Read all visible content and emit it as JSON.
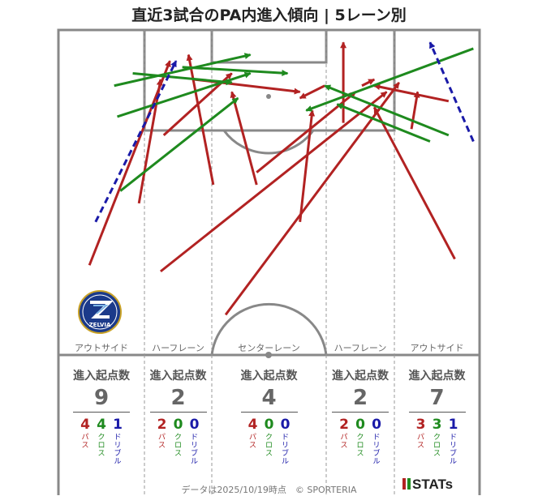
{
  "title": "直近3試合のPA内進入傾向 | 5レーン別",
  "footer": "データは2025/10/19時点　© SPORTERIA",
  "stats_logo": "STATs",
  "club_logo": {
    "text": "ZELVIA",
    "color": "#1b3a8a"
  },
  "stat_heading": "進入起点数",
  "types": {
    "pass": "パス",
    "cross": "クロス",
    "dribble": "ドリブル"
  },
  "colors": {
    "pass": "#b22222",
    "cross": "#1e8a1e",
    "dribble": "#1a1aa8"
  },
  "lanes": [
    {
      "name": "アウトサイド",
      "total": "9",
      "pass": "4",
      "cross": "4",
      "dribble": "1"
    },
    {
      "name": "ハーフレーン",
      "total": "2",
      "pass": "2",
      "cross": "0",
      "dribble": "0"
    },
    {
      "name": "センターレーン",
      "total": "4",
      "pass": "4",
      "cross": "0",
      "dribble": "0"
    },
    {
      "name": "ハーフレーン",
      "total": "2",
      "pass": "2",
      "cross": "0",
      "dribble": "0"
    },
    {
      "name": "アウトサイド",
      "total": "7",
      "pass": "3",
      "cross": "3",
      "dribble": "1"
    }
  ],
  "chart_data": {
    "type": "scatter",
    "title": "直近3試合のPA内進入傾向 | 5レーン別",
    "description_units": "pitch coordinates in metres: x = across pitch (0 left touchline – 68 right touchline), y = distance from goal line (0 – 52.5 half-way line)",
    "xlim": [
      0,
      68
    ],
    "ylim": [
      0,
      52.5
    ],
    "series": [
      {
        "name": "パス",
        "style": "solid",
        "color": "#b22222",
        "arrows": [
          {
            "from": [
              5,
              38
            ],
            "to": [
              18,
              5
            ]
          },
          {
            "from": [
              13,
              28
            ],
            "to": [
              16.5,
              8
            ]
          },
          {
            "from": [
              25,
              25
            ],
            "to": [
              21,
              4
            ]
          },
          {
            "from": [
              17,
              17
            ],
            "to": [
              28,
              7
            ]
          },
          {
            "from": [
              22,
              8
            ],
            "to": [
              39,
              10
            ]
          },
          {
            "from": [
              16.5,
              39
            ],
            "to": [
              53,
              10
            ]
          },
          {
            "from": [
              27,
              46
            ],
            "to": [
              55,
              8.5
            ]
          },
          {
            "from": [
              32,
              25
            ],
            "to": [
              28,
              10
            ]
          },
          {
            "from": [
              39,
              31
            ],
            "to": [
              41,
              13
            ]
          },
          {
            "from": [
              43,
              9
            ],
            "to": [
              39,
              11
            ]
          },
          {
            "from": [
              49,
              9
            ],
            "to": [
              51,
              8
            ]
          },
          {
            "from": [
              46,
              15
            ],
            "to": [
              46,
              2
            ]
          },
          {
            "from": [
              64,
              37
            ],
            "to": [
              51,
              12.5
            ]
          },
          {
            "from": [
              63,
              11.5
            ],
            "to": [
              51,
              9
            ]
          },
          {
            "from": [
              57,
              16
            ],
            "to": [
              58,
              10
            ]
          },
          {
            "from": [
              32,
              23
            ],
            "to": [
              48,
              10
            ]
          }
        ]
      },
      {
        "name": "クロス",
        "style": "solid",
        "color": "#1e8a1e",
        "arrows": [
          {
            "from": [
              12,
              7
            ],
            "to": [
              28,
              8.5
            ]
          },
          {
            "from": [
              9,
              9
            ],
            "to": [
              31,
              4
            ]
          },
          {
            "from": [
              9.5,
              14
            ],
            "to": [
              31,
              7
            ]
          },
          {
            "from": [
              10,
              26
            ],
            "to": [
              29,
              11
            ]
          },
          {
            "from": [
              20,
              6
            ],
            "to": [
              37,
              7
            ]
          },
          {
            "from": [
              67,
              3
            ],
            "to": [
              40,
              13
            ]
          },
          {
            "from": [
              63,
              17
            ],
            "to": [
              43,
              9
            ]
          },
          {
            "from": [
              60,
              18
            ],
            "to": [
              45,
              12
            ]
          }
        ]
      },
      {
        "name": "ドリブル",
        "style": "dashed",
        "color": "#1a1aa8",
        "arrows": [
          {
            "from": [
              6,
              31
            ],
            "to": [
              19,
              5
            ]
          },
          {
            "from": [
              67,
              18
            ],
            "to": [
              60,
              2
            ]
          }
        ]
      }
    ],
    "lane_labels": [
      "アウトサイド",
      "ハーフレーン",
      "センターレーン",
      "ハーフレーン",
      "アウトサイド"
    ],
    "counts": {
      "categories": [
        "アウトサイド",
        "ハーフレーン",
        "センターレーン",
        "ハーフレーン",
        "アウトサイド"
      ],
      "total": [
        9,
        2,
        4,
        2,
        7
      ],
      "pass": [
        4,
        2,
        4,
        2,
        3
      ],
      "cross": [
        4,
        0,
        0,
        0,
        3
      ],
      "dribble": [
        1,
        0,
        0,
        0,
        1
      ]
    },
    "grid": false,
    "legend": "none"
  }
}
